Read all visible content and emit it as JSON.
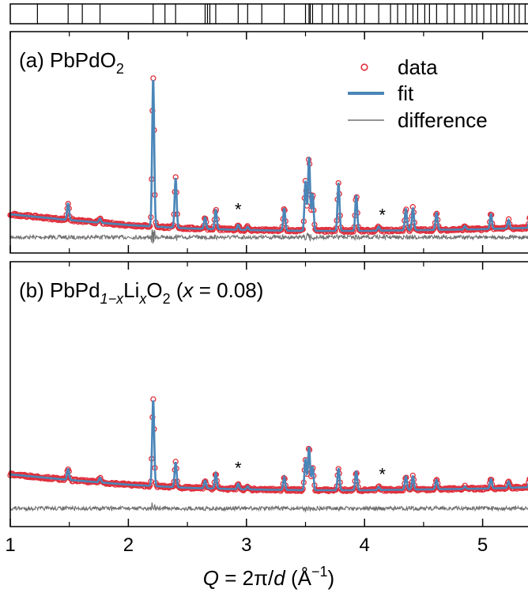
{
  "chart_data": [
    {
      "type": "line",
      "panel": "a",
      "title": "(a) PbPdO",
      "title_sub": "2",
      "xlim": [
        1,
        5.45
      ],
      "legend_position": "top-right",
      "legend": [
        {
          "key": "data",
          "label": "data",
          "color": "#e0303c",
          "marker": "open-circle"
        },
        {
          "key": "fit",
          "label": "fit",
          "color": "#4a86b8"
        },
        {
          "key": "difference",
          "label": "difference",
          "color": "#707070"
        }
      ],
      "impurity_markers": [
        {
          "x": 2.93,
          "label": "*"
        },
        {
          "x": 4.15,
          "label": "*"
        }
      ],
      "background": [
        [
          1.0,
          0.4
        ],
        [
          1.5,
          0.33
        ],
        [
          2.0,
          0.27
        ],
        [
          2.5,
          0.23
        ],
        [
          3.0,
          0.21
        ],
        [
          3.5,
          0.2
        ],
        [
          4.0,
          0.2
        ],
        [
          4.5,
          0.21
        ],
        [
          5.0,
          0.22
        ],
        [
          5.45,
          0.24
        ]
      ],
      "peaks": [
        {
          "x": 1.49,
          "h": 0.2
        },
        {
          "x": 1.76,
          "h": 0.05
        },
        {
          "x": 2.21,
          "h": 1.8
        },
        {
          "x": 2.4,
          "h": 0.6
        },
        {
          "x": 2.65,
          "h": 0.14
        },
        {
          "x": 2.74,
          "h": 0.24
        },
        {
          "x": 2.93,
          "h": 0.06
        },
        {
          "x": 3.01,
          "h": 0.04
        },
        {
          "x": 3.32,
          "h": 0.27
        },
        {
          "x": 3.5,
          "h": 0.6
        },
        {
          "x": 3.53,
          "h": 0.9
        },
        {
          "x": 3.56,
          "h": 0.45
        },
        {
          "x": 3.78,
          "h": 0.58
        },
        {
          "x": 3.93,
          "h": 0.43
        },
        {
          "x": 4.12,
          "h": 0.05
        },
        {
          "x": 4.35,
          "h": 0.26
        },
        {
          "x": 4.41,
          "h": 0.27
        },
        {
          "x": 4.61,
          "h": 0.21
        },
        {
          "x": 4.85,
          "h": 0.04
        },
        {
          "x": 5.07,
          "h": 0.18
        },
        {
          "x": 5.22,
          "h": 0.1
        },
        {
          "x": 5.4,
          "h": 0.13
        }
      ]
    },
    {
      "type": "line",
      "panel": "b",
      "title_parts": [
        "(b) PbPd",
        "1−x",
        "Li",
        "x",
        "O",
        "2",
        " (",
        "x",
        " = 0.08)"
      ],
      "xlim": [
        1,
        5.45
      ],
      "impurity_markers": [
        {
          "x": 2.93,
          "label": "*"
        },
        {
          "x": 4.15,
          "label": "*"
        }
      ],
      "background": [
        [
          1.0,
          0.4
        ],
        [
          1.5,
          0.33
        ],
        [
          2.0,
          0.27
        ],
        [
          2.5,
          0.23
        ],
        [
          3.0,
          0.21
        ],
        [
          3.5,
          0.2
        ],
        [
          4.0,
          0.2
        ],
        [
          4.5,
          0.21
        ],
        [
          5.0,
          0.22
        ],
        [
          5.45,
          0.24
        ]
      ],
      "peaks": [
        {
          "x": 1.49,
          "h": 0.14
        },
        {
          "x": 1.76,
          "h": 0.06
        },
        {
          "x": 2.21,
          "h": 1.1
        },
        {
          "x": 2.4,
          "h": 0.32
        },
        {
          "x": 2.65,
          "h": 0.1
        },
        {
          "x": 2.74,
          "h": 0.19
        },
        {
          "x": 2.93,
          "h": 0.07
        },
        {
          "x": 3.01,
          "h": 0.04
        },
        {
          "x": 3.32,
          "h": 0.16
        },
        {
          "x": 3.5,
          "h": 0.4
        },
        {
          "x": 3.53,
          "h": 0.55
        },
        {
          "x": 3.56,
          "h": 0.3
        },
        {
          "x": 3.78,
          "h": 0.28
        },
        {
          "x": 3.93,
          "h": 0.24
        },
        {
          "x": 4.12,
          "h": 0.04
        },
        {
          "x": 4.35,
          "h": 0.17
        },
        {
          "x": 4.41,
          "h": 0.17
        },
        {
          "x": 4.61,
          "h": 0.12
        },
        {
          "x": 4.85,
          "h": 0.03
        },
        {
          "x": 5.07,
          "h": 0.12
        },
        {
          "x": 5.22,
          "h": 0.08
        },
        {
          "x": 5.4,
          "h": 0.11
        }
      ]
    }
  ],
  "reflection_ticks": [
    1.23,
    1.49,
    1.61,
    1.76,
    2.21,
    2.31,
    2.4,
    2.65,
    2.67,
    2.69,
    2.74,
    2.93,
    3.01,
    3.13,
    3.32,
    3.5,
    3.53,
    3.54,
    3.56,
    3.64,
    3.73,
    3.78,
    3.86,
    3.93,
    4.0,
    4.12,
    4.22,
    4.28,
    4.35,
    4.41,
    4.45,
    4.51,
    4.55,
    4.61,
    4.7,
    4.76,
    4.85,
    4.91,
    4.95,
    5.01,
    5.07,
    5.12,
    5.17,
    5.22,
    5.27,
    5.31,
    5.36,
    5.4,
    5.42,
    5.44
  ],
  "x_axis": {
    "ticks": [
      "1",
      "2",
      "3",
      "4",
      "5"
    ],
    "label_Q": "Q",
    "label_mid": " = 2π/",
    "label_d": "d",
    "label_unit": " (Å",
    "label_sup": "−1",
    "label_close": ")"
  },
  "colors": {
    "data": "#e0303c",
    "fit": "#4a86b8",
    "difference": "#707070",
    "axis": "#000000"
  }
}
